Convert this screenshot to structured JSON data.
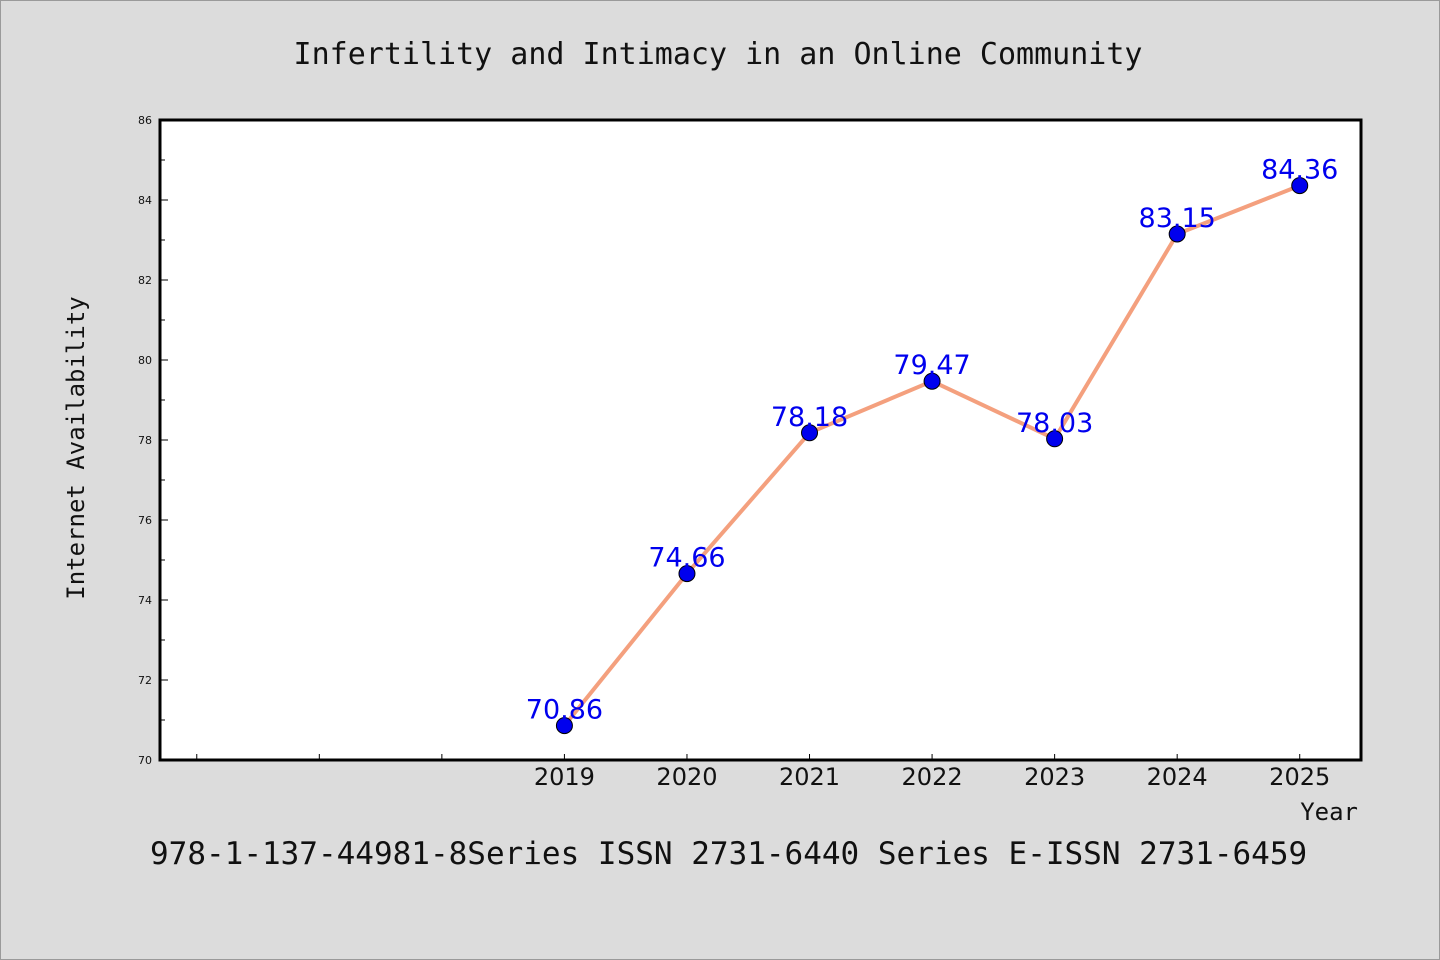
{
  "chart_data": {
    "type": "line",
    "title": "Infertility and Intimacy in an Online Community",
    "xlabel": "Year",
    "ylabel": "Internet Availability",
    "x": [
      "2019",
      "2020",
      "2021",
      "2022",
      "2023",
      "2024",
      "2025"
    ],
    "series": [
      {
        "values": [
          70.86,
          74.66,
          78.18,
          79.47,
          78.03,
          83.15,
          84.36
        ],
        "labels": [
          "70.86",
          "74.66",
          "78.18",
          "79.47",
          "78.03",
          "83.15",
          "84.36"
        ]
      }
    ],
    "ylim": [
      70,
      86
    ],
    "xlim": [
      2015.7,
      2025.5
    ],
    "yticks": [
      "70",
      "72",
      "74",
      "76",
      "78",
      "80",
      "82",
      "84",
      "86"
    ],
    "grid": false,
    "legend": "none",
    "line_color": "#f4a07e",
    "marker_color": "#0000ee",
    "label_color": "#0000ee"
  },
  "footer": "978-1-137-44981-8Series ISSN 2731-6440 Series E-ISSN 2731-6459"
}
